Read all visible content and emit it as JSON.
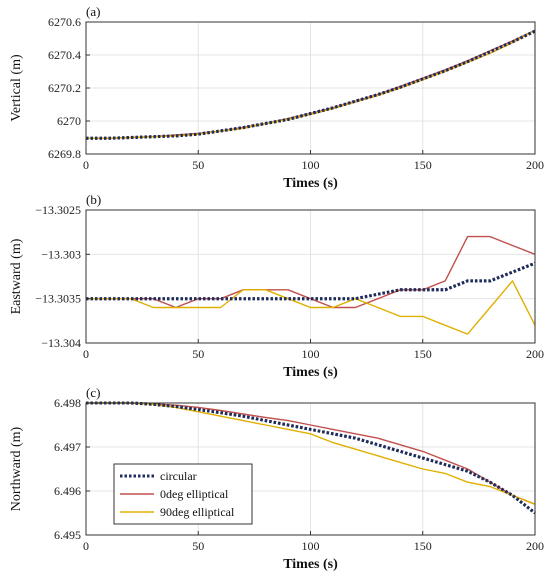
{
  "figure": {
    "legend_location": "bottom-left of panel (c)",
    "grid": true
  },
  "chart_data": [
    {
      "type": "line",
      "panel_label": "(a)",
      "xlabel": "Times (s)",
      "ylabel": "Vertical (m)",
      "xlim": [
        0,
        200
      ],
      "ylim": [
        6269.8,
        6270.6
      ],
      "xticks": [
        0,
        50,
        100,
        150,
        200
      ],
      "yticks": [
        6269.8,
        6270,
        6270.2,
        6270.4,
        6270.6
      ],
      "ytick_labels": [
        "6269.8",
        "6270",
        "6270.2",
        "6270.4",
        "6270.6"
      ],
      "x": [
        0,
        10,
        20,
        30,
        40,
        50,
        60,
        70,
        80,
        90,
        100,
        110,
        120,
        130,
        140,
        150,
        160,
        170,
        180,
        190,
        200
      ],
      "series": [
        {
          "name": "circular",
          "color": "#1f2d5c",
          "style": "dotted",
          "values": [
            6269.895,
            6269.895,
            6269.9,
            6269.905,
            6269.91,
            6269.92,
            6269.94,
            6269.96,
            6269.985,
            6270.01,
            6270.045,
            6270.08,
            6270.12,
            6270.16,
            6270.205,
            6270.255,
            6270.305,
            6270.36,
            6270.42,
            6270.48,
            6270.545
          ]
        },
        {
          "name": "0deg elliptical",
          "color": "#c0504d",
          "style": "solid",
          "values": [
            6269.895,
            6269.895,
            6269.9,
            6269.905,
            6269.915,
            6269.925,
            6269.94,
            6269.96,
            6269.985,
            6270.015,
            6270.045,
            6270.08,
            6270.12,
            6270.16,
            6270.21,
            6270.26,
            6270.31,
            6270.365,
            6270.425,
            6270.485,
            6270.55
          ]
        },
        {
          "name": "90deg elliptical",
          "color": "#e0b000",
          "style": "solid",
          "values": [
            6269.895,
            6269.895,
            6269.9,
            6269.905,
            6269.91,
            6269.92,
            6269.94,
            6269.955,
            6269.985,
            6270.01,
            6270.04,
            6270.075,
            6270.115,
            6270.155,
            6270.2,
            6270.25,
            6270.3,
            6270.355,
            6270.41,
            6270.475,
            6270.55
          ]
        }
      ]
    },
    {
      "type": "line",
      "panel_label": "(b)",
      "xlabel": "Times (s)",
      "ylabel": "Eastward (m)",
      "xlim": [
        0,
        200
      ],
      "ylim": [
        -13.304,
        -13.3025
      ],
      "xticks": [
        0,
        50,
        100,
        150,
        200
      ],
      "yticks": [
        -13.304,
        -13.3035,
        -13.303,
        -13.3025
      ],
      "ytick_labels": [
        "−13.304",
        "−13.3035",
        "−13.303",
        "−13.3025"
      ],
      "x": [
        0,
        10,
        20,
        30,
        40,
        50,
        60,
        70,
        80,
        90,
        100,
        110,
        120,
        130,
        140,
        150,
        160,
        170,
        180,
        190,
        200
      ],
      "series": [
        {
          "name": "circular",
          "color": "#1f2d5c",
          "style": "dotted",
          "values": [
            -13.3035,
            -13.3035,
            -13.3035,
            -13.3035,
            -13.3035,
            -13.3035,
            -13.3035,
            -13.3035,
            -13.3035,
            -13.3035,
            -13.3035,
            -13.3035,
            -13.3035,
            -13.30345,
            -13.3034,
            -13.3034,
            -13.3034,
            -13.3033,
            -13.3033,
            -13.3032,
            -13.3031
          ]
        },
        {
          "name": "0deg elliptical",
          "color": "#c0504d",
          "style": "solid",
          "values": [
            -13.3035,
            -13.3035,
            -13.3035,
            -13.3035,
            -13.3036,
            -13.3035,
            -13.3035,
            -13.3034,
            -13.3034,
            -13.3034,
            -13.3035,
            -13.3036,
            -13.3036,
            -13.3035,
            -13.3034,
            -13.3034,
            -13.3033,
            -13.3028,
            -13.3028,
            -13.3029,
            -13.303
          ]
        },
        {
          "name": "90deg elliptical",
          "color": "#e0b000",
          "style": "solid",
          "values": [
            -13.3035,
            -13.3035,
            -13.3035,
            -13.3036,
            -13.3036,
            -13.3036,
            -13.3036,
            -13.3034,
            -13.3034,
            -13.3035,
            -13.3036,
            -13.3036,
            -13.3035,
            -13.3036,
            -13.3037,
            -13.3037,
            -13.3038,
            -13.3039,
            -13.3036,
            -13.3033,
            -13.3038
          ]
        }
      ]
    },
    {
      "type": "line",
      "panel_label": "(c)",
      "xlabel": "Times (s)",
      "ylabel": "Northward (m)",
      "xlim": [
        0,
        200
      ],
      "ylim": [
        6.495,
        6.498
      ],
      "xticks": [
        0,
        50,
        100,
        150,
        200
      ],
      "yticks": [
        6.495,
        6.496,
        6.497,
        6.498
      ],
      "ytick_labels": [
        "6.495",
        "6.496",
        "6.497",
        "6.498"
      ],
      "x": [
        0,
        10,
        20,
        30,
        40,
        50,
        60,
        70,
        80,
        90,
        100,
        110,
        120,
        130,
        140,
        150,
        160,
        170,
        180,
        190,
        200
      ],
      "series": [
        {
          "name": "circular",
          "color": "#1f2d5c",
          "style": "dotted",
          "values": [
            6.498,
            6.498,
            6.498,
            6.49797,
            6.49792,
            6.49785,
            6.49778,
            6.4977,
            6.4976,
            6.4975,
            6.4974,
            6.4973,
            6.4972,
            6.49705,
            6.4969,
            6.49675,
            6.4966,
            6.49645,
            6.4962,
            6.4959,
            6.4955
          ]
        },
        {
          "name": "0deg elliptical",
          "color": "#c0504d",
          "style": "solid",
          "values": [
            6.498,
            6.498,
            6.498,
            6.49798,
            6.49795,
            6.4979,
            6.49783,
            6.49775,
            6.49767,
            6.4976,
            6.4975,
            6.4974,
            6.4973,
            6.4972,
            6.49705,
            6.4969,
            6.4967,
            6.4965,
            6.4962,
            6.4959,
            6.4957
          ]
        },
        {
          "name": "90deg elliptical",
          "color": "#e0b000",
          "style": "solid",
          "values": [
            6.498,
            6.498,
            6.498,
            6.49797,
            6.4979,
            6.4978,
            6.4977,
            6.4976,
            6.4975,
            6.4974,
            6.4973,
            6.4971,
            6.49695,
            6.4968,
            6.49665,
            6.4965,
            6.4964,
            6.4962,
            6.4961,
            6.4959,
            6.4957
          ]
        }
      ]
    }
  ]
}
